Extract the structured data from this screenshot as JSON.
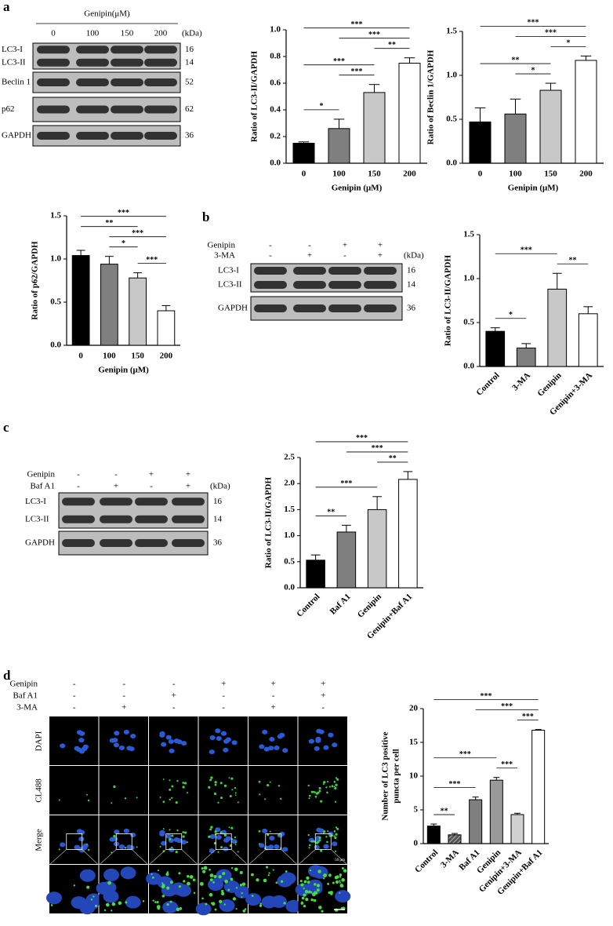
{
  "panels": [
    "a",
    "b",
    "c",
    "d"
  ],
  "blots": [
    {
      "header": "Genipin(μM)",
      "lanes": [
        "0",
        "100",
        "150",
        "200"
      ],
      "kda_header": "(kDa)",
      "rows": [
        {
          "labels": [
            "LC3-I",
            "LC3-II"
          ],
          "kda": [
            "16",
            "14"
          ]
        },
        {
          "labels": [
            "Beclin 1"
          ],
          "kda": [
            "52"
          ]
        },
        {
          "labels": [
            "p62"
          ],
          "kda": [
            "62"
          ]
        },
        {
          "labels": [
            "GAPDH"
          ],
          "kda": [
            "36"
          ]
        }
      ]
    },
    {
      "conditions": [
        {
          "name": "Genipin",
          "signs": [
            "-",
            "-",
            "+",
            "+"
          ]
        },
        {
          "name": "3-MA",
          "signs": [
            "-",
            "+",
            "-",
            "+"
          ]
        }
      ],
      "kda_header": "(kDa)",
      "rows": [
        {
          "labels": [
            "LC3-I",
            "LC3-II"
          ],
          "kda": [
            "16",
            "14"
          ]
        },
        {
          "labels": [
            "GAPDH"
          ],
          "kda": [
            "36"
          ]
        }
      ]
    },
    {
      "conditions": [
        {
          "name": "Genipin",
          "signs": [
            "-",
            "-",
            "+",
            "+"
          ]
        },
        {
          "name": "Baf A1",
          "signs": [
            "-",
            "+",
            "-",
            "+"
          ]
        }
      ],
      "kda_header": "(kDa)",
      "rows": [
        {
          "labels": [
            "LC3-I",
            "LC3-II"
          ],
          "kda": [
            "16",
            "14"
          ]
        },
        {
          "labels": [
            "GAPDH"
          ],
          "kda": [
            "36"
          ]
        }
      ]
    }
  ],
  "microscopy": {
    "conditions": [
      {
        "name": "Genipin",
        "signs": [
          "-",
          "-",
          "-",
          "+",
          "+",
          "+"
        ]
      },
      {
        "name": "Baf A1",
        "signs": [
          "-",
          "-",
          "+",
          "-",
          "-",
          "+"
        ]
      },
      {
        "name": "3-MA",
        "signs": [
          "-",
          "+",
          "-",
          "-",
          "+",
          "-"
        ]
      }
    ],
    "channels": [
      "DAPI",
      "CL488",
      "Merge"
    ],
    "scale_bar": "50 μm"
  },
  "chart_data": [
    {
      "type": "bar",
      "y_label": "Ratio of LC3-II/GAPDH",
      "x_label": "Genipin (μM)",
      "categories": [
        "0",
        "100",
        "150",
        "200"
      ],
      "values": [
        0.15,
        0.26,
        0.53,
        0.75
      ],
      "errors": [
        0.01,
        0.07,
        0.06,
        0.04
      ],
      "colors": [
        "#000000",
        "#7f7f7f",
        "#c8c8c8",
        "#ffffff"
      ],
      "ylim": [
        0,
        1.0
      ],
      "yticks": [
        {
          "value": 0,
          "label": "0.0"
        },
        0.2,
        0.4,
        0.6,
        0.8,
        {
          "value": 1,
          "label": "1.0"
        }
      ],
      "brackets": [
        {
          "from": 0,
          "to": 1,
          "label": "*"
        },
        {
          "from": 1,
          "to": 2,
          "label": "***"
        },
        {
          "from": 0,
          "to": 2,
          "label": "***"
        },
        {
          "from": 2,
          "to": 3,
          "label": "**"
        },
        {
          "from": 1,
          "to": 3,
          "label": "***"
        },
        {
          "from": 0,
          "to": 3,
          "label": "***"
        }
      ]
    },
    {
      "type": "bar",
      "y_label": "Ratio of Beclin 1/GAPDH",
      "x_label": "Genipin (μM)",
      "categories": [
        "0",
        "100",
        "150",
        "200"
      ],
      "values": [
        0.47,
        0.56,
        0.83,
        1.17
      ],
      "errors": [
        0.16,
        0.17,
        0.08,
        0.05
      ],
      "colors": [
        "#000000",
        "#7f7f7f",
        "#c8c8c8",
        "#ffffff"
      ],
      "ylim": [
        0,
        1.5
      ],
      "yticks": [
        {
          "value": 0,
          "label": "0.0"
        },
        0.5,
        {
          "value": 1,
          "label": "1.0"
        },
        1.5
      ],
      "brackets": [
        {
          "from": 1,
          "to": 2,
          "label": "*"
        },
        {
          "from": 0,
          "to": 2,
          "label": "**"
        },
        {
          "from": 2,
          "to": 3,
          "label": "*"
        },
        {
          "from": 1,
          "to": 3,
          "label": "***"
        },
        {
          "from": 0,
          "to": 3,
          "label": "***"
        }
      ]
    },
    {
      "type": "bar",
      "y_label": "Ratio of p62/GAPDH",
      "x_label": "Genipin (μM)",
      "categories": [
        "0",
        "100",
        "150",
        "200"
      ],
      "values": [
        1.04,
        0.94,
        0.78,
        0.4
      ],
      "errors": [
        0.06,
        0.09,
        0.06,
        0.06
      ],
      "colors": [
        "#000000",
        "#7f7f7f",
        "#c8c8c8",
        "#ffffff"
      ],
      "ylim": [
        0,
        1.5
      ],
      "yticks": [
        {
          "value": 0,
          "label": "0.0"
        },
        0.5,
        {
          "value": 1,
          "label": "1.0"
        },
        1.5
      ],
      "brackets": [
        {
          "from": 2,
          "to": 3,
          "label": "***"
        },
        {
          "from": 1,
          "to": 2,
          "label": "*"
        },
        {
          "from": 1,
          "to": 3,
          "label": "***"
        },
        {
          "from": 0,
          "to": 2,
          "label": "**"
        },
        {
          "from": 0,
          "to": 3,
          "label": "***"
        }
      ]
    },
    {
      "type": "bar",
      "y_label": "Ratio of LC3-II/GAPDH",
      "categories": [
        "Control",
        "3-MA",
        "Genipin",
        "Genipin+3-MA"
      ],
      "values": [
        0.4,
        0.21,
        0.88,
        0.6
      ],
      "errors": [
        0.04,
        0.05,
        0.18,
        0.08
      ],
      "colors": [
        "#000000",
        "#7f7f7f",
        "#c8c8c8",
        "#ffffff"
      ],
      "ylim": [
        0,
        1.5
      ],
      "yticks": [
        {
          "value": 0,
          "label": "0.0"
        },
        0.5,
        {
          "value": 1,
          "label": "1.0"
        },
        1.5
      ],
      "brackets": [
        {
          "from": 0,
          "to": 1,
          "label": "*"
        },
        {
          "from": 2,
          "to": 3,
          "label": "**"
        },
        {
          "from": 0,
          "to": 2,
          "label": "***"
        }
      ]
    },
    {
      "type": "bar",
      "y_label": "Ratio of LC3-II/GAPDH",
      "categories": [
        "Control",
        "Baf A1",
        "Genipin",
        "Genipin+Baf A1"
      ],
      "values": [
        0.53,
        1.07,
        1.5,
        2.08
      ],
      "errors": [
        0.1,
        0.13,
        0.25,
        0.15
      ],
      "colors": [
        "#000000",
        "#7f7f7f",
        "#c8c8c8",
        "#ffffff"
      ],
      "ylim": [
        0,
        2.5
      ],
      "yticks": [
        {
          "value": 0,
          "label": "0.0"
        },
        0.5,
        {
          "value": 1,
          "label": "1.0"
        },
        1.5,
        {
          "value": 2,
          "label": "2.0"
        },
        2.5
      ],
      "brackets": [
        {
          "from": 0,
          "to": 1,
          "label": "**"
        },
        {
          "from": 0,
          "to": 2,
          "label": "***"
        },
        {
          "from": 2,
          "to": 3,
          "label": "**"
        },
        {
          "from": 1,
          "to": 3,
          "label": "***"
        },
        {
          "from": 0,
          "to": 3,
          "label": "***"
        }
      ]
    },
    {
      "type": "bar",
      "y_label": [
        "Number of LC3 positive",
        "puncta per cell"
      ],
      "categories": [
        "Control",
        "3-MA",
        "Baf A1",
        "Genipin",
        "Genipin+3-MA",
        "Genipin+Baf A1"
      ],
      "values": [
        2.6,
        1.3,
        6.5,
        9.4,
        4.3,
        16.8
      ],
      "errors": [
        0.3,
        0.2,
        0.4,
        0.4,
        0.2,
        0.1
      ],
      "colors": [
        "#000000",
        "#555555",
        "#7f7f7f",
        "#999999",
        "#d0d0d0",
        "#ffffff"
      ],
      "hatched": [
        "3-MA"
      ],
      "ylim": [
        0,
        20
      ],
      "yticks": [
        0,
        5,
        10,
        15,
        20
      ],
      "brackets": [
        {
          "from": 0,
          "to": 1,
          "label": "**"
        },
        {
          "from": 0,
          "to": 2,
          "label": "***"
        },
        {
          "from": 3,
          "to": 4,
          "label": "***"
        },
        {
          "from": 0,
          "to": 3,
          "label": "***"
        },
        {
          "from": 4,
          "to": 5,
          "label": "***"
        },
        {
          "from": 2,
          "to": 5,
          "label": "***"
        },
        {
          "from": 0,
          "to": 5,
          "label": "***"
        }
      ]
    }
  ]
}
